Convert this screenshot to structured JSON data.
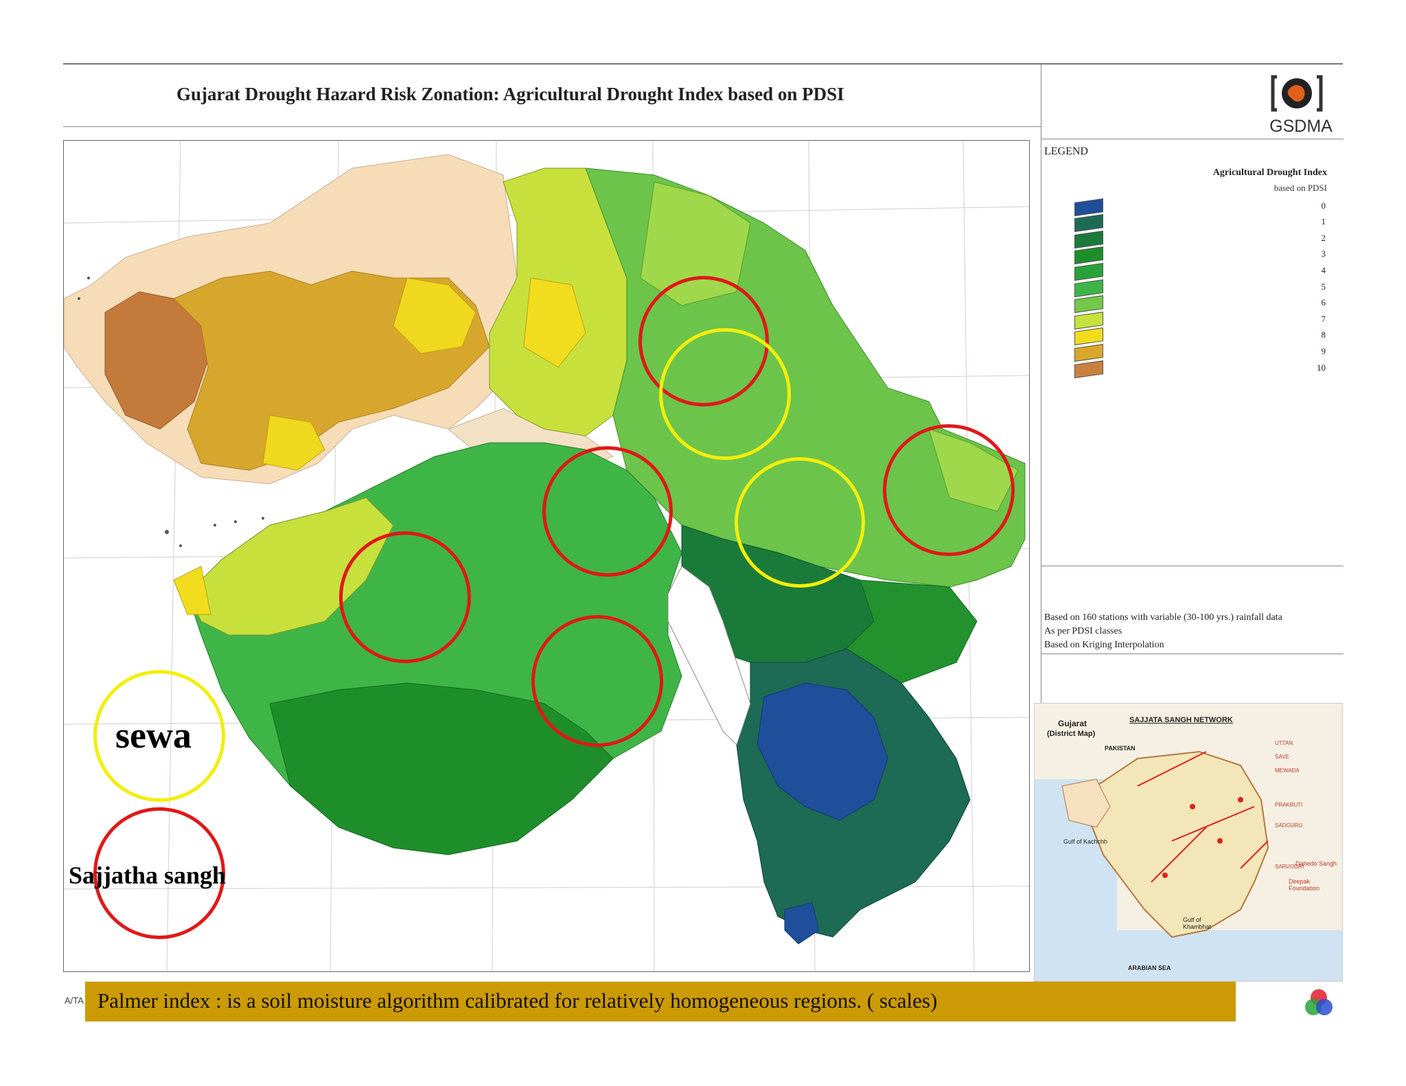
{
  "header": {
    "title": "Gujarat Drought Hazard Risk Zonation: Agricultural Drought Index based on PDSI"
  },
  "logo": {
    "text": "GSDMA",
    "icon": "gsdma-logo-icon"
  },
  "legend": {
    "heading": "LEGEND",
    "title": "Agricultural Drought Index",
    "subtitle": "based on PDSI",
    "items": [
      {
        "label": "0",
        "color": "#1f4f9a"
      },
      {
        "label": "1",
        "color": "#1d6a55"
      },
      {
        "label": "2",
        "color": "#1a7a3a"
      },
      {
        "label": "3",
        "color": "#1e8e2a"
      },
      {
        "label": "4",
        "color": "#2aa23a"
      },
      {
        "label": "5",
        "color": "#3fb548"
      },
      {
        "label": "6",
        "color": "#72c84a"
      },
      {
        "label": "7",
        "color": "#c6e23e"
      },
      {
        "label": "8",
        "color": "#f1dc1c"
      },
      {
        "label": "9",
        "color": "#d9a72a"
      },
      {
        "label": "10",
        "color": "#c9823d"
      }
    ]
  },
  "notes": [
    "Based on 160 stations with variable (30-100 yrs.) rainfall data",
    "As per PDSI classes",
    "Based on Kriging Interpolation"
  ],
  "inset": {
    "map_label_1": "Gujarat",
    "map_label_2": "(District Map)",
    "network_title": "SAJJATA SANGH NETWORK",
    "pakistan": "PAKISTAN",
    "gulf_kutch": "Gulf of Kachchh",
    "gulf_khambhat": "Gulf of Khambhat",
    "arabian_sea": "ARABIAN SEA",
    "partner_1": "Dahedo Sangh",
    "partner_2": "Deepak Foundation"
  },
  "key": {
    "sewa": "sewa",
    "sajjatha": "Sajjatha sangh"
  },
  "footer": {
    "text": "Palmer index : is a soil moisture algorithm calibrated for relatively homogeneous regions. ( scales)",
    "left_fragment": "A/TA"
  },
  "colors": {
    "red_ring": "#e01818",
    "yellow_ring": "#f2ef0a",
    "footer_bg": "#cc9a05"
  }
}
